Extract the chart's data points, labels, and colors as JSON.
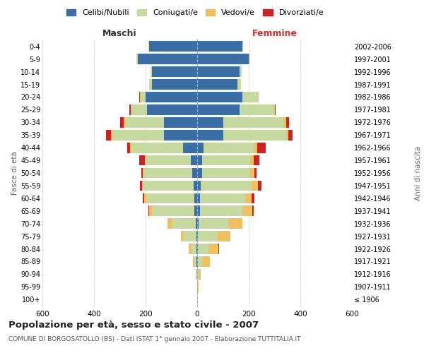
{
  "age_groups": [
    "100+",
    "95-99",
    "90-94",
    "85-89",
    "80-84",
    "75-79",
    "70-74",
    "65-69",
    "60-64",
    "55-59",
    "50-54",
    "45-49",
    "40-44",
    "35-39",
    "30-34",
    "25-29",
    "20-24",
    "15-19",
    "10-14",
    "5-9",
    "0-4"
  ],
  "birth_years": [
    "≤ 1906",
    "1907-1911",
    "1912-1916",
    "1917-1921",
    "1922-1926",
    "1927-1931",
    "1932-1936",
    "1937-1941",
    "1942-1946",
    "1947-1951",
    "1952-1956",
    "1957-1961",
    "1962-1966",
    "1967-1971",
    "1972-1976",
    "1977-1981",
    "1982-1986",
    "1987-1991",
    "1992-1996",
    "1997-2001",
    "2002-2006"
  ],
  "males": {
    "celibi": [
      0,
      0,
      0,
      3,
      3,
      4,
      5,
      10,
      12,
      15,
      18,
      25,
      55,
      130,
      130,
      195,
      200,
      175,
      175,
      230,
      185
    ],
    "coniugati": [
      0,
      0,
      4,
      8,
      20,
      50,
      95,
      165,
      185,
      195,
      190,
      175,
      200,
      200,
      150,
      60,
      20,
      10,
      5,
      5,
      4
    ],
    "vedovi": [
      0,
      0,
      1,
      5,
      10,
      10,
      15,
      10,
      8,
      5,
      4,
      4,
      4,
      5,
      4,
      3,
      2,
      0,
      0,
      0,
      0
    ],
    "divorziati": [
      0,
      0,
      0,
      0,
      0,
      0,
      0,
      5,
      5,
      8,
      5,
      20,
      12,
      18,
      15,
      5,
      2,
      0,
      0,
      0,
      0
    ]
  },
  "females": {
    "nubili": [
      0,
      1,
      1,
      3,
      3,
      4,
      5,
      10,
      12,
      15,
      18,
      20,
      25,
      100,
      100,
      165,
      175,
      155,
      165,
      200,
      175
    ],
    "coniugate": [
      0,
      0,
      5,
      15,
      40,
      75,
      115,
      165,
      175,
      195,
      185,
      185,
      195,
      245,
      235,
      130,
      60,
      15,
      8,
      5,
      4
    ],
    "vedove": [
      0,
      4,
      8,
      30,
      40,
      50,
      55,
      40,
      25,
      25,
      18,
      15,
      12,
      8,
      10,
      5,
      2,
      0,
      0,
      0,
      0
    ],
    "divorziate": [
      0,
      0,
      0,
      0,
      3,
      0,
      0,
      5,
      10,
      15,
      8,
      20,
      35,
      18,
      10,
      5,
      0,
      0,
      0,
      0,
      0
    ]
  },
  "colors": {
    "celibi_nubili": "#3a6ea5",
    "coniugati": "#c5d9a0",
    "vedovi": "#f0c060",
    "divorziati": "#cc2222"
  },
  "title": "Popolazione per età, sesso e stato civile - 2007",
  "subtitle": "COMUNE DI BORGOSATOLLO (BS) - Dati ISTAT 1° gennaio 2007 - Elaborazione TUTTITALIA.IT",
  "xlabel_left": "Maschi",
  "xlabel_right": "Femmine",
  "ylabel_left": "Fasce di età",
  "ylabel_right": "Anni di nascita",
  "xlim": 600,
  "bg_color": "#ffffff",
  "grid_color": "#cccccc",
  "legend_labels": [
    "Celibi/Nubili",
    "Coniugati/e",
    "Vedovi/e",
    "Divorziati/e"
  ]
}
